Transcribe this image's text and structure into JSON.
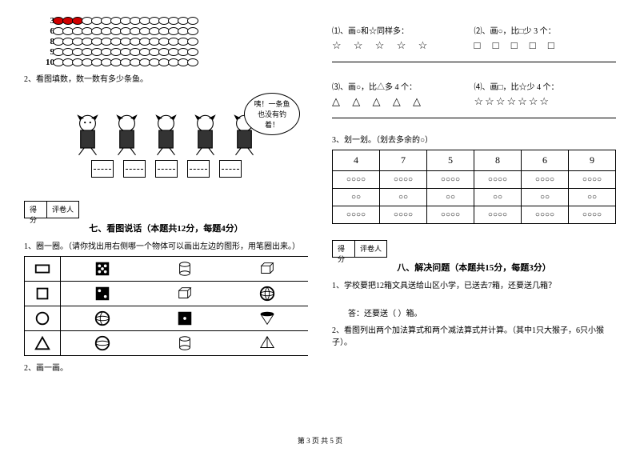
{
  "abacus": {
    "rows": [
      {
        "label": "3",
        "red": 3,
        "white": 12
      },
      {
        "label": "6",
        "red": 0,
        "white": 15
      },
      {
        "label": "8",
        "red": 0,
        "white": 15
      },
      {
        "label": "9",
        "red": 0,
        "white": 15
      },
      {
        "label": "10",
        "red": 0,
        "white": 15
      }
    ]
  },
  "q2_left": "2、看图填数，数一数有多少条鱼。",
  "speech": "咦！一条鱼也没有钓着！",
  "section7": {
    "header": "七、看图说话（本题共12分，每题4分）",
    "q1": "1、圈一圈。（请你找出用右侧哪一个物体可以画出左边的图形，用笔圈出来。）",
    "q2": "2、画一画。"
  },
  "score": {
    "col1": "得分",
    "col2": "评卷人"
  },
  "right": {
    "q1": "⑴、画○和☆同样多：",
    "q1_sym": "☆ ☆ ☆ ☆ ☆",
    "q2": "⑵、画○，比□少 3 个：",
    "q2_sym": "□ □ □ □ □",
    "q3": "⑶、画○，比△多 4 个：",
    "q3_sym": "△ △ △ △ △",
    "q4": "⑷、画□，比☆少 4 个：",
    "q4_sym": "☆☆☆☆☆☆☆"
  },
  "q3_right": "3、划一划。（划去多余的○）",
  "cross_table": {
    "headers": [
      "4",
      "7",
      "5",
      "8",
      "6",
      "9"
    ],
    "rows": [
      [
        "○○○○",
        "○○○○",
        "○○○○",
        "○○○○",
        "○○○○",
        "○○○○"
      ],
      [
        "○○",
        "○○",
        "○○",
        "○○",
        "○○",
        "○○"
      ],
      [
        "○○○○",
        "○○○○",
        "○○○○",
        "○○○○",
        "○○○○",
        "○○○○"
      ]
    ]
  },
  "section8": {
    "header": "八、解决问题（本题共15分，每题3分）",
    "q1": "1、学校要把12箱文具送给山区小学，已送去7箱，还要送几箱？",
    "ans1": "答：还要送（    ）箱。",
    "q2": "2、看图列出两个加法算式和两个减法算式并计算。（其中1只大猴子，6只小猴子）。"
  },
  "footer": "第 3 页 共 5 页"
}
